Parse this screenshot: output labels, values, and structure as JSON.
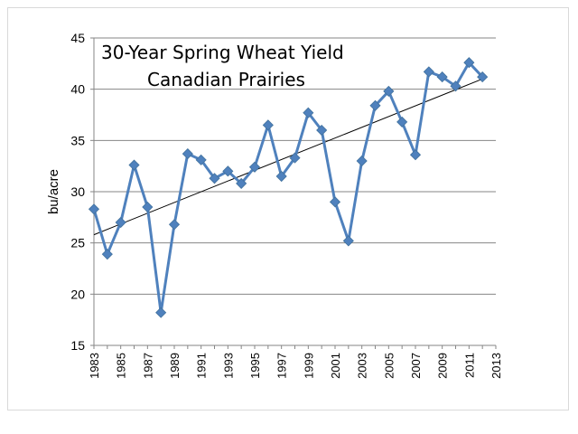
{
  "chart_data": {
    "type": "line",
    "title_lines": [
      "30-Year Spring Wheat Yield",
      "Canadian Prairies"
    ],
    "ylabel": "bu/acre",
    "xlabel": "",
    "ylim": [
      15,
      45
    ],
    "yticks": [
      15,
      20,
      25,
      30,
      35,
      40,
      45
    ],
    "xlim": [
      1983,
      2013
    ],
    "xticks": [
      "1983",
      "1985",
      "1987",
      "1989",
      "1991",
      "1993",
      "1995",
      "1997",
      "1999",
      "2001",
      "2003",
      "2005",
      "2007",
      "2009",
      "2011",
      "2013"
    ],
    "grid": "horizontal",
    "series": [
      {
        "color": "#4f81bd",
        "marker": "diamond",
        "x": [
          1983,
          1984,
          1985,
          1986,
          1987,
          1988,
          1989,
          1990,
          1991,
          1992,
          1993,
          1994,
          1995,
          1996,
          1997,
          1998,
          1999,
          2000,
          2001,
          2002,
          2003,
          2004,
          2005,
          2006,
          2007,
          2008,
          2009,
          2010,
          2011,
          2012
        ],
        "y": [
          28.3,
          23.9,
          27.0,
          32.6,
          28.5,
          18.2,
          26.8,
          33.7,
          33.1,
          31.3,
          32.0,
          30.8,
          32.4,
          36.5,
          31.5,
          33.3,
          37.7,
          36.0,
          29.0,
          25.2,
          33.0,
          38.4,
          39.8,
          36.8,
          33.6,
          41.7,
          41.2,
          40.3,
          42.6,
          41.2
        ]
      }
    ],
    "trendline": {
      "color": "#000000",
      "x": [
        1983,
        2012
      ],
      "y": [
        25.8,
        41.0
      ]
    }
  }
}
